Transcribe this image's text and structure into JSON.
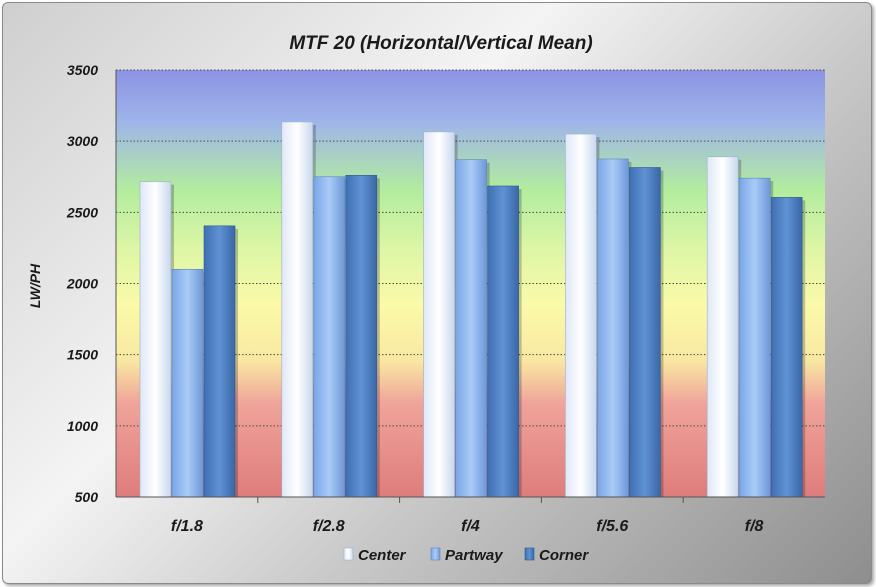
{
  "chart_data": {
    "type": "bar",
    "title": "MTF 20 (Horizontal/Vertical Mean)",
    "xlabel": "",
    "ylabel": "LW/PH",
    "ylim": [
      500,
      3500
    ],
    "yticks": [
      "500",
      "1000",
      "1500",
      "2000",
      "2500",
      "3000",
      "3500"
    ],
    "categories": [
      "f/1.8",
      "f/2.8",
      "f/4",
      "f/5.6",
      "f/8"
    ],
    "series": [
      {
        "name": "Center",
        "values": [
          2715,
          3135,
          3065,
          3050,
          2890
        ]
      },
      {
        "name": "Partway",
        "values": [
          2100,
          2750,
          2870,
          2875,
          2740
        ]
      },
      {
        "name": "Corner",
        "values": [
          2405,
          2760,
          2685,
          2815,
          2605
        ]
      }
    ],
    "grid": true,
    "legend_position": "bottom"
  },
  "colors": {
    "center": "#eef3fc",
    "partway": "#8fb8f0",
    "corner": "#4f82c5",
    "plot_top": "#8f97e6",
    "plot_green": "#b7ee9e",
    "plot_yellow": "#fafaa8",
    "plot_bottom": "#e08080"
  }
}
